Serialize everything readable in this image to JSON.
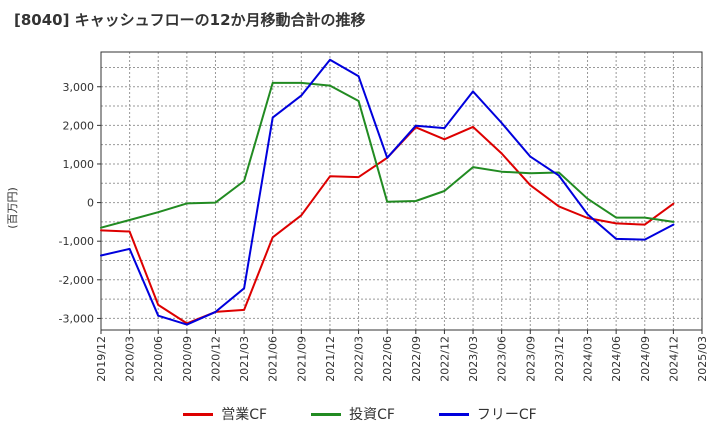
{
  "chart_data": {
    "type": "line",
    "title": "[8040]  キャッシュフローの12か月移動合計の推移",
    "ylabel": "(百万円)",
    "xlabel": "",
    "ylim": [
      -3300,
      3900
    ],
    "yticks": [
      -3000,
      -2000,
      -1000,
      0,
      1000,
      2000,
      3000
    ],
    "ytick_labels": [
      "-3,000",
      "-2,000",
      "-1,000",
      "0",
      "1,000",
      "2,000",
      "3,000"
    ],
    "x": [
      "2019/12",
      "2020/03",
      "2020/06",
      "2020/09",
      "2020/12",
      "2021/03",
      "2021/06",
      "2021/09",
      "2021/12",
      "2022/03",
      "2022/06",
      "2022/09",
      "2022/12",
      "2023/03",
      "2023/06",
      "2023/09",
      "2023/12",
      "2024/03",
      "2024/06",
      "2024/09",
      "2024/12",
      "2025/03"
    ],
    "grid": true,
    "legend": "bottom-center",
    "series": [
      {
        "name": "営業CF",
        "color": "#dd0000",
        "values": [
          -720,
          -750,
          -2650,
          -3130,
          -2830,
          -2780,
          -900,
          -330,
          680,
          660,
          1160,
          1950,
          1640,
          1960,
          1270,
          450,
          -100,
          -400,
          -540,
          -570,
          -30,
          null
        ]
      },
      {
        "name": "投資CF",
        "color": "#228b22",
        "values": [
          -650,
          -450,
          -250,
          -20,
          0,
          560,
          3100,
          3100,
          3030,
          2630,
          20,
          40,
          300,
          920,
          800,
          760,
          780,
          100,
          -390,
          -390,
          -500,
          null
        ]
      },
      {
        "name": "フリーCF",
        "color": "#0000dd",
        "values": [
          -1370,
          -1200,
          -2930,
          -3160,
          -2830,
          -2220,
          2200,
          2770,
          3700,
          3270,
          1160,
          1990,
          1930,
          2880,
          2060,
          1190,
          700,
          -300,
          -940,
          -960,
          -570,
          null
        ]
      }
    ]
  }
}
